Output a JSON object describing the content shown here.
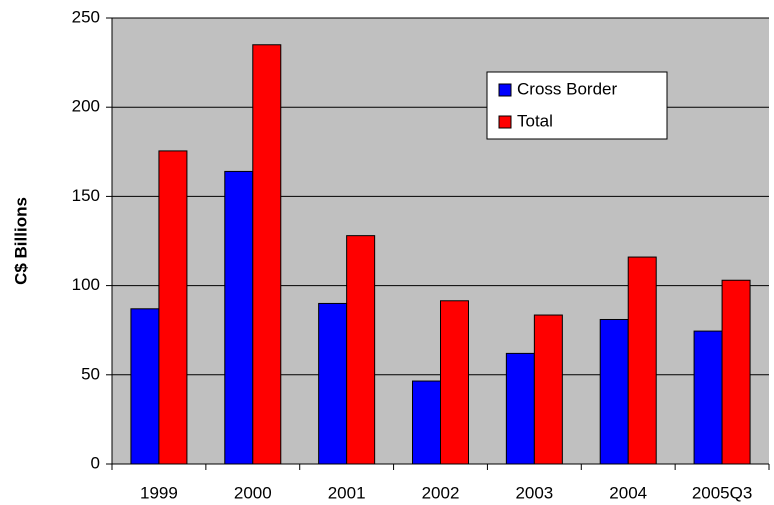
{
  "chart_data": {
    "type": "bar",
    "y_label": "C$ Billions",
    "categories": [
      "1999",
      "2000",
      "2001",
      "2002",
      "2003",
      "2004",
      "2005Q3"
    ],
    "series": [
      {
        "name": "Cross Border",
        "color": "#0000ff",
        "values": [
          87,
          164,
          90,
          46.5,
          62,
          81,
          74.5
        ]
      },
      {
        "name": "Total",
        "color": "#ff0000",
        "values": [
          175.5,
          235,
          128,
          91.5,
          83.5,
          116,
          103
        ]
      }
    ],
    "ylim": [
      0,
      250
    ],
    "yticks": [
      0,
      50,
      100,
      150,
      200,
      250
    ],
    "grid": true,
    "legend": "upper right"
  }
}
